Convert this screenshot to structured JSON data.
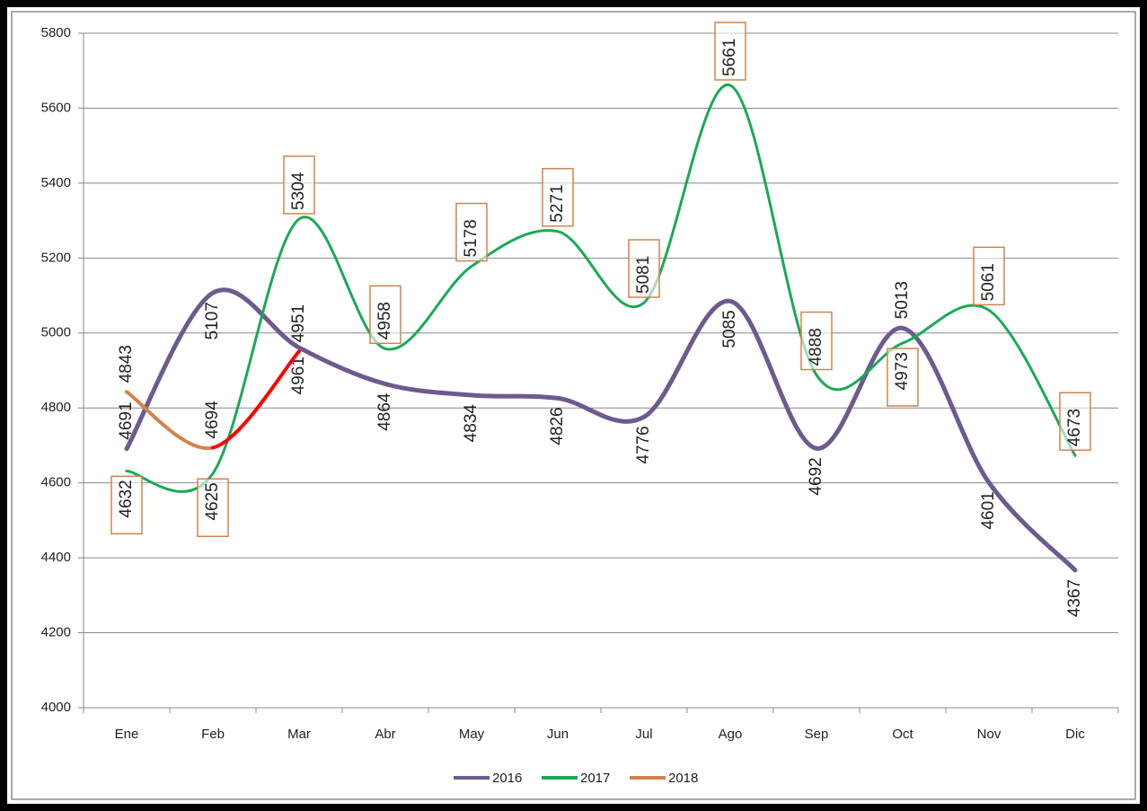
{
  "chart_data": {
    "type": "line",
    "categories": [
      "Ene",
      "Feb",
      "Mar",
      "Abr",
      "May",
      "Jun",
      "Jul",
      "Ago",
      "Sep",
      "Oct",
      "Nov",
      "Dic"
    ],
    "series": [
      {
        "name": "2016",
        "color": "#6d5a8f",
        "values": [
          4691,
          5107,
          4961,
          4864,
          4834,
          4826,
          4776,
          5085,
          4692,
          5013,
          4601,
          4367
        ]
      },
      {
        "name": "2017",
        "color": "#1aaa55",
        "values": [
          4632,
          4625,
          5304,
          4958,
          5178,
          5271,
          5081,
          5661,
          4888,
          4973,
          5061,
          4673
        ]
      },
      {
        "name": "2018",
        "color": "#d2844b",
        "label_color": "#ff0000",
        "segment_colors": [
          "#d2844b",
          "#ff0000"
        ],
        "values": [
          4843,
          4694,
          4951,
          null,
          null,
          null,
          null,
          null,
          null,
          null,
          null,
          null
        ]
      }
    ],
    "ylim": [
      4000,
      5800
    ],
    "yticks": [
      4000,
      4200,
      4400,
      4600,
      4800,
      5000,
      5200,
      5400,
      5600,
      5800
    ],
    "grid": true,
    "legend": "bottom"
  }
}
